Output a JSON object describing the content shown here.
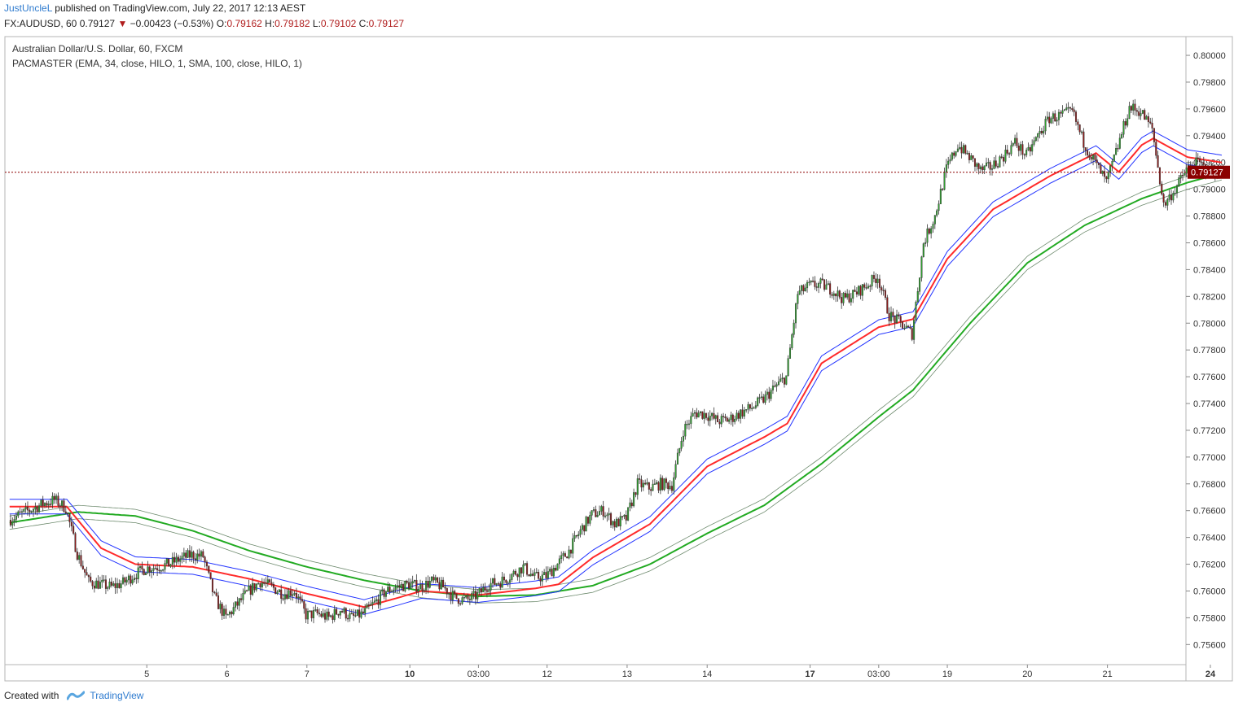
{
  "header": {
    "author": "JustUncleL",
    "published_text": "published on TradingView.com, July 22, 2017 12:13 AEST"
  },
  "symbol_line": {
    "symbol": "FX:AUDUSD, 60",
    "last": "0.79127",
    "change": "−0.00423 (−0.53%)",
    "o_label": "O:",
    "o_value": "0.79162",
    "h_label": "H:",
    "h_value": "0.79182",
    "l_label": "L:",
    "l_value": "0.79102",
    "c_label": "C:",
    "c_value": "0.79127"
  },
  "footer": {
    "created_with": "Created with",
    "brand": "TradingView"
  },
  "colors": {
    "up": "#2e9e2e",
    "down": "#8b1a1a",
    "ema_mid": "#ff2a2a",
    "ema_band": "#2233ff",
    "sma_mid": "#22aa22",
    "sma_band": "#6d8a6d",
    "price_line": "#8b0000"
  },
  "chart_data": {
    "type": "candlestick",
    "title": "Australian Dollar/U.S. Dollar, 60, FXCM",
    "indicator": "PACMASTER (EMA, 34, close, HILO, 1, SMA, 100, close, HILO, 1)",
    "ylim": [
      0.7545,
      0.8014
    ],
    "y_ticks": [
      "0.80000",
      "0.79800",
      "0.79600",
      "0.79400",
      "0.79200",
      "0.79000",
      "0.78800",
      "0.78600",
      "0.78400",
      "0.78200",
      "0.78000",
      "0.77800",
      "0.77600",
      "0.77400",
      "0.77200",
      "0.77000",
      "0.76800",
      "0.76600",
      "0.76400",
      "0.76200",
      "0.76000",
      "0.75800",
      "0.75600"
    ],
    "x_ticks": [
      {
        "label": "5",
        "t": 6
      },
      {
        "label": "6",
        "t": 13
      },
      {
        "label": "7",
        "t": 20
      },
      {
        "label": "10",
        "t": 29,
        "bold": true
      },
      {
        "label": "03:00",
        "t": 35
      },
      {
        "label": "12",
        "t": 41
      },
      {
        "label": "13",
        "t": 48
      },
      {
        "label": "14",
        "t": 55
      },
      {
        "label": "17",
        "t": 64,
        "bold": true
      },
      {
        "label": "03:00",
        "t": 70
      },
      {
        "label": "19",
        "t": 76
      },
      {
        "label": "20",
        "t": 83
      },
      {
        "label": "21",
        "t": 90
      },
      {
        "label": "24",
        "t": 99,
        "bold": true
      }
    ],
    "price_label": "0.79127",
    "current_price": 0.79127,
    "t_range": [
      -6,
      101
    ],
    "close_keypoints": [
      [
        -6,
        0.7653
      ],
      [
        -3,
        0.7665
      ],
      [
        -2,
        0.7668
      ],
      [
        -1,
        0.7662
      ],
      [
        0,
        0.7628
      ],
      [
        1,
        0.7607
      ],
      [
        2,
        0.7605
      ],
      [
        3,
        0.7603
      ],
      [
        4,
        0.7606
      ],
      [
        5,
        0.7612
      ],
      [
        6,
        0.7617
      ],
      [
        7,
        0.7618
      ],
      [
        8,
        0.762
      ],
      [
        9,
        0.7624
      ],
      [
        10,
        0.7627
      ],
      [
        11,
        0.7626
      ],
      [
        12,
        0.7595
      ],
      [
        13,
        0.758
      ],
      [
        14,
        0.759
      ],
      [
        15,
        0.76
      ],
      [
        16,
        0.7607
      ],
      [
        17,
        0.7603
      ],
      [
        18,
        0.7598
      ],
      [
        19,
        0.76
      ],
      [
        20,
        0.7582
      ],
      [
        21,
        0.7583
      ],
      [
        22,
        0.758
      ],
      [
        23,
        0.7586
      ],
      [
        24,
        0.758
      ],
      [
        25,
        0.7583
      ],
      [
        26,
        0.7591
      ],
      [
        27,
        0.76
      ],
      [
        28,
        0.7603
      ],
      [
        29,
        0.7605
      ],
      [
        30,
        0.7603
      ],
      [
        31,
        0.7607
      ],
      [
        32,
        0.7603
      ],
      [
        33,
        0.7595
      ],
      [
        34,
        0.7593
      ],
      [
        35,
        0.7597
      ],
      [
        36,
        0.7605
      ],
      [
        37,
        0.7607
      ],
      [
        38,
        0.7612
      ],
      [
        39,
        0.7618
      ],
      [
        40,
        0.761
      ],
      [
        41,
        0.7611
      ],
      [
        42,
        0.762
      ],
      [
        43,
        0.763
      ],
      [
        44,
        0.7645
      ],
      [
        45,
        0.7657
      ],
      [
        46,
        0.766
      ],
      [
        47,
        0.765
      ],
      [
        48,
        0.7654
      ],
      [
        49,
        0.768
      ],
      [
        50,
        0.7677
      ],
      [
        51,
        0.768
      ],
      [
        52,
        0.7679
      ],
      [
        53,
        0.772
      ],
      [
        54,
        0.7733
      ],
      [
        55,
        0.7732
      ],
      [
        56,
        0.7727
      ],
      [
        57,
        0.7728
      ],
      [
        58,
        0.7733
      ],
      [
        59,
        0.7737
      ],
      [
        60,
        0.7743
      ],
      [
        61,
        0.7752
      ],
      [
        62,
        0.776
      ],
      [
        63,
        0.7822
      ],
      [
        64,
        0.7828
      ],
      [
        65,
        0.7829
      ],
      [
        66,
        0.7825
      ],
      [
        67,
        0.7818
      ],
      [
        68,
        0.7822
      ],
      [
        69,
        0.7828
      ],
      [
        70,
        0.7835
      ],
      [
        71,
        0.7806
      ],
      [
        72,
        0.78
      ],
      [
        73,
        0.7792
      ],
      [
        74,
        0.786
      ],
      [
        75,
        0.788
      ],
      [
        76,
        0.7915
      ],
      [
        77,
        0.7933
      ],
      [
        78,
        0.7924
      ],
      [
        79,
        0.7914
      ],
      [
        80,
        0.7917
      ],
      [
        81,
        0.7925
      ],
      [
        82,
        0.7935
      ],
      [
        83,
        0.7925
      ],
      [
        84,
        0.794
      ],
      [
        85,
        0.7953
      ],
      [
        86,
        0.7955
      ],
      [
        87,
        0.7958
      ],
      [
        88,
        0.7935
      ],
      [
        89,
        0.792
      ],
      [
        90,
        0.7905
      ],
      [
        91,
        0.7932
      ],
      [
        92,
        0.7961
      ],
      [
        93,
        0.7958
      ],
      [
        94,
        0.7945
      ],
      [
        95,
        0.7888
      ],
      [
        96,
        0.79
      ],
      [
        97,
        0.7915
      ],
      [
        98,
        0.792
      ],
      [
        99,
        0.7913
      ],
      [
        100,
        0.79127
      ]
    ],
    "ema_keypoints": [
      [
        -6,
        0.7663
      ],
      [
        -1,
        0.7663
      ],
      [
        2,
        0.7632
      ],
      [
        5,
        0.762
      ],
      [
        10,
        0.7618
      ],
      [
        15,
        0.7609
      ],
      [
        20,
        0.7598
      ],
      [
        25,
        0.7588
      ],
      [
        28,
        0.7595
      ],
      [
        30,
        0.76
      ],
      [
        35,
        0.7597
      ],
      [
        40,
        0.7602
      ],
      [
        42,
        0.7605
      ],
      [
        45,
        0.7625
      ],
      [
        50,
        0.765
      ],
      [
        55,
        0.7693
      ],
      [
        60,
        0.7715
      ],
      [
        62,
        0.7725
      ],
      [
        65,
        0.777
      ],
      [
        70,
        0.7797
      ],
      [
        73,
        0.7803
      ],
      [
        76,
        0.7848
      ],
      [
        80,
        0.7885
      ],
      [
        85,
        0.791
      ],
      [
        89,
        0.7927
      ],
      [
        91,
        0.7913
      ],
      [
        93,
        0.7933
      ],
      [
        94,
        0.7938
      ],
      [
        97,
        0.7924
      ],
      [
        100,
        0.792
      ]
    ],
    "ema_band_width": 0.00055,
    "sma_keypoints": [
      [
        -6,
        0.7651
      ],
      [
        0,
        0.7659
      ],
      [
        5,
        0.7656
      ],
      [
        10,
        0.7645
      ],
      [
        15,
        0.763
      ],
      [
        20,
        0.7618
      ],
      [
        25,
        0.7608
      ],
      [
        30,
        0.76
      ],
      [
        35,
        0.7596
      ],
      [
        40,
        0.7597
      ],
      [
        45,
        0.7604
      ],
      [
        50,
        0.762
      ],
      [
        55,
        0.7643
      ],
      [
        60,
        0.7664
      ],
      [
        65,
        0.7695
      ],
      [
        70,
        0.773
      ],
      [
        73,
        0.775
      ],
      [
        78,
        0.78
      ],
      [
        83,
        0.7845
      ],
      [
        88,
        0.7873
      ],
      [
        93,
        0.7893
      ],
      [
        97,
        0.7905
      ],
      [
        100,
        0.7912
      ]
    ],
    "sma_band_width": 0.0005
  }
}
